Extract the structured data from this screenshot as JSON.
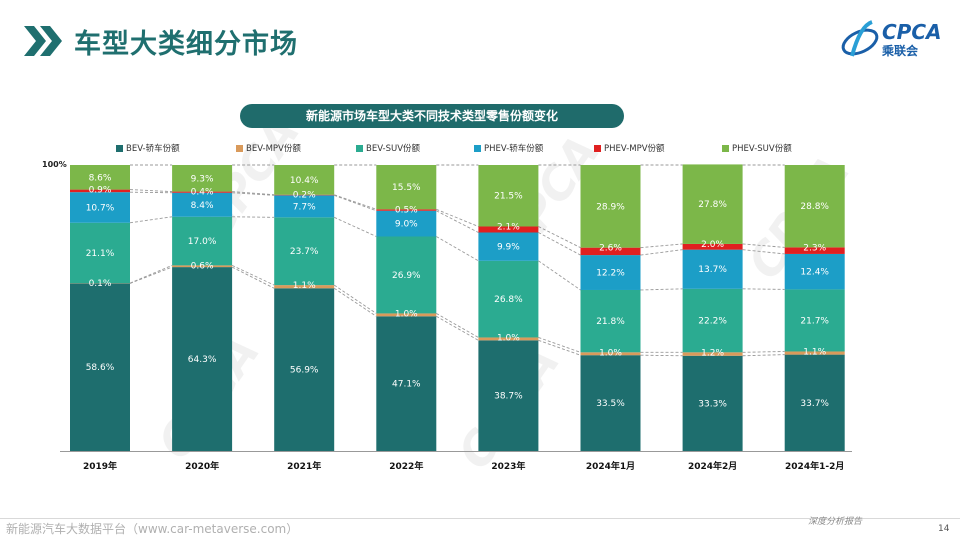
{
  "header": {
    "title": "车型大类细分市场"
  },
  "logo": {
    "text": "CPCA",
    "subtext": "乘联会"
  },
  "footer": {
    "left": "新能源汽车大数据平台（www.car-metaverse.com）",
    "right": "深度分析报告",
    "page": "14"
  },
  "watermark": "CPCA",
  "colors": {
    "title": "#1f6f6f",
    "subtitle_bg": "#1f6b6b",
    "series": [
      "#1e6e6e",
      "#d99a5b",
      "#2bab91",
      "#1c9ec7",
      "#e02020",
      "#7cb749"
    ]
  },
  "chart_data": {
    "type": "bar",
    "stacked": true,
    "title": "新能源市场车型大类不同技术类型零售份额变化",
    "ylabel": "",
    "xlabel": "",
    "ylim": [
      0,
      100
    ],
    "y_top_label": "100%",
    "categories": [
      "2019年",
      "2020年",
      "2021年",
      "2022年",
      "2023年",
      "2024年1月",
      "2024年2月",
      "2024年1-2月"
    ],
    "series": [
      {
        "name": "BEV-轿车份额",
        "values": [
          58.6,
          64.3,
          56.9,
          47.1,
          38.7,
          33.5,
          33.3,
          33.7
        ],
        "labels": [
          "58.6%",
          "64.3%",
          "56.9%",
          "47.1%",
          "38.7%",
          "33.5%",
          "33.3%",
          "33.7%"
        ]
      },
      {
        "name": "BEV-MPV份额",
        "values": [
          0.1,
          0.6,
          1.1,
          1.0,
          1.0,
          1.0,
          1.2,
          1.1
        ],
        "labels": [
          "0.1%",
          "0.6%",
          "1.1%",
          "1.0%",
          "1.0%",
          "1.0%",
          "1.2%",
          "1.1%"
        ]
      },
      {
        "name": "BEV-SUV份额",
        "values": [
          21.1,
          17.0,
          23.7,
          26.9,
          26.8,
          21.8,
          22.2,
          21.7
        ],
        "labels": [
          "21.1%",
          "17.0%",
          "23.7%",
          "26.9%",
          "26.8%",
          "21.8%",
          "22.2%",
          "21.7%"
        ]
      },
      {
        "name": "PHEV-轿车份额",
        "values": [
          10.7,
          8.4,
          7.7,
          9.0,
          9.9,
          12.2,
          13.7,
          12.4
        ],
        "labels": [
          "10.7%",
          "8.4%",
          "7.7%",
          "9.0%",
          "9.9%",
          "12.2%",
          "13.7%",
          "12.4%"
        ]
      },
      {
        "name": "PHEV-MPV份额",
        "values": [
          0.9,
          0.4,
          0.2,
          0.5,
          2.1,
          2.6,
          2.0,
          2.3
        ],
        "labels": [
          "0.9%",
          "0.4%",
          "0.2%",
          "0.5%",
          "2.1%",
          "2.6%",
          "2.0%",
          "2.3%"
        ]
      },
      {
        "name": "PHEV-SUV份额",
        "values": [
          8.6,
          9.3,
          10.4,
          15.5,
          21.5,
          28.9,
          27.8,
          28.8
        ],
        "labels": [
          "8.6%",
          "9.3%",
          "10.4%",
          "15.5%",
          "21.5%",
          "28.9%",
          "27.8%",
          "28.8%"
        ]
      }
    ],
    "legend_position": "top",
    "connector_lines": true
  }
}
